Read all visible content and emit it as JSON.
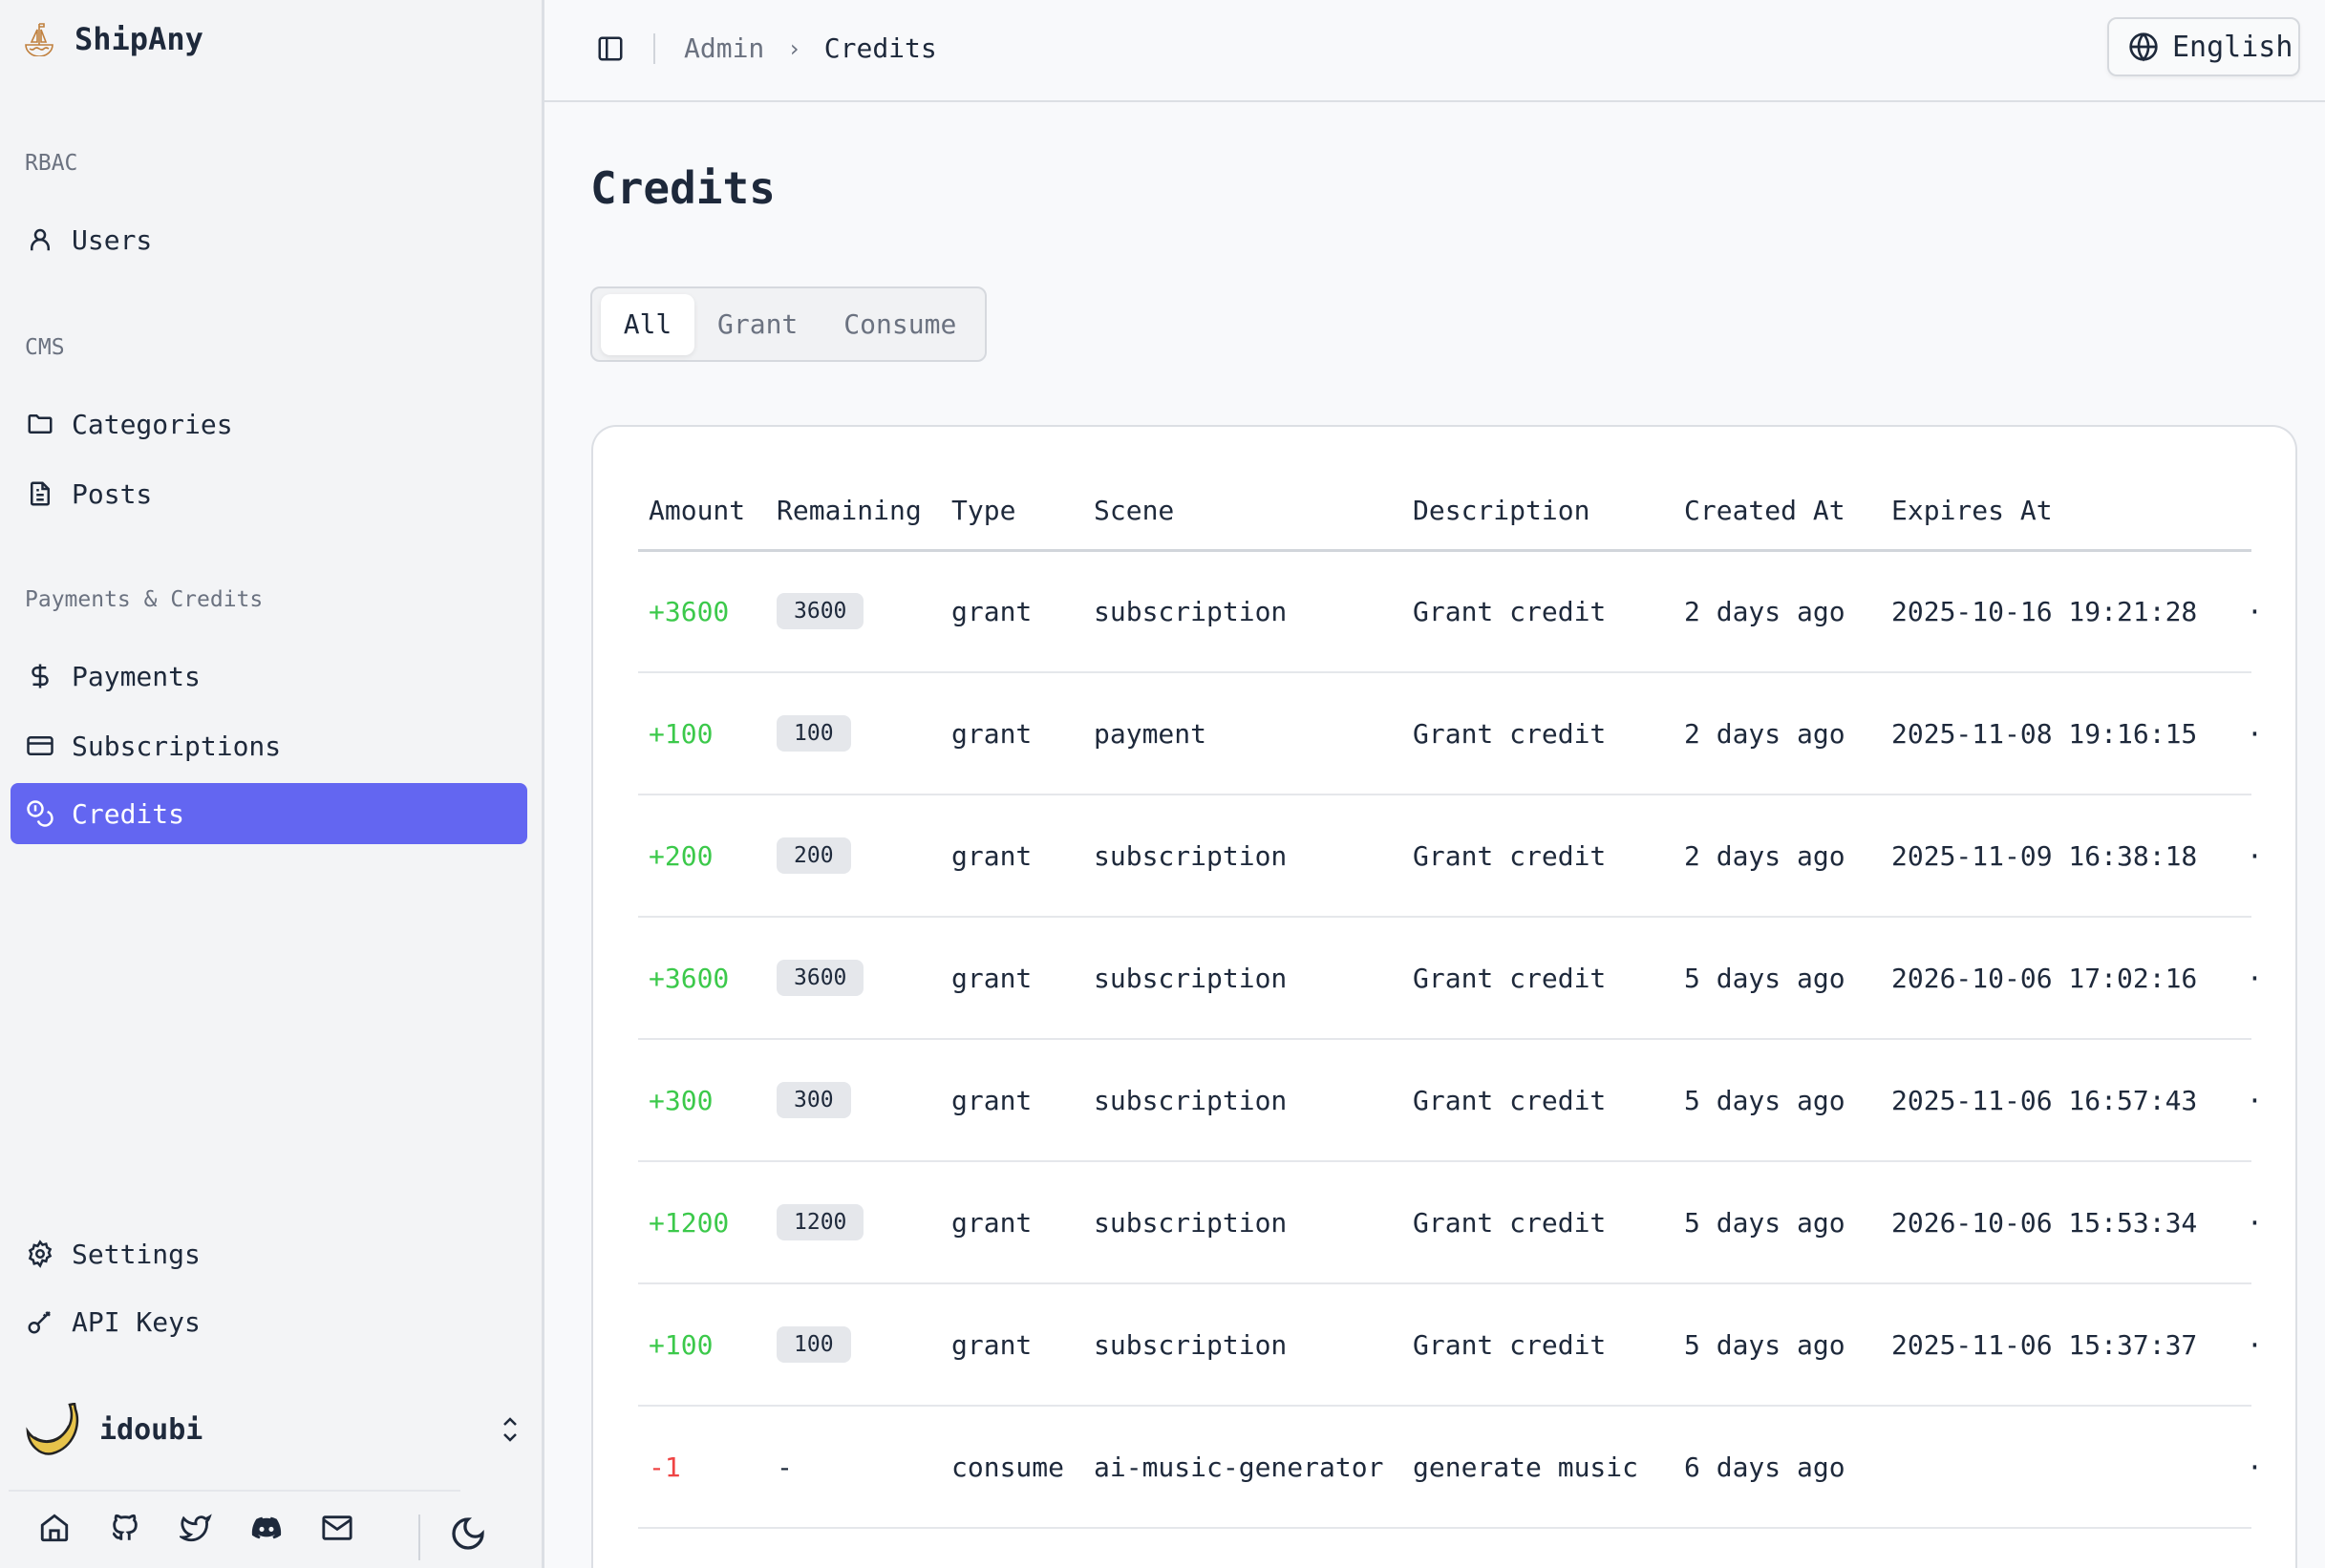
{
  "sidebar": {
    "brand": "ShipAny",
    "sections": [
      {
        "label": "RBAC",
        "items": [
          {
            "label": "Users",
            "icon": "user-icon"
          }
        ]
      },
      {
        "label": "CMS",
        "items": [
          {
            "label": "Categories",
            "icon": "folder-icon"
          },
          {
            "label": "Posts",
            "icon": "file-text-icon"
          }
        ]
      },
      {
        "label": "Payments & Credits",
        "items": [
          {
            "label": "Payments",
            "icon": "dollar-icon"
          },
          {
            "label": "Subscriptions",
            "icon": "credit-card-icon"
          },
          {
            "label": "Credits",
            "icon": "coins-icon",
            "active": true
          }
        ]
      }
    ],
    "bottom_items": [
      {
        "label": "Settings",
        "icon": "gear-icon"
      },
      {
        "label": "API Keys",
        "icon": "key-icon"
      }
    ],
    "user": {
      "name": "idoubi"
    },
    "footer_icons": [
      "home-icon",
      "github-icon",
      "twitter-icon",
      "discord-icon",
      "mail-icon",
      "moon-icon"
    ]
  },
  "header": {
    "breadcrumb": [
      "Admin",
      "Credits"
    ],
    "language": "English"
  },
  "page": {
    "title": "Credits",
    "tabs": [
      {
        "label": "All",
        "active": true
      },
      {
        "label": "Grant"
      },
      {
        "label": "Consume"
      }
    ]
  },
  "colors": {
    "accent": "#6366f1",
    "positive": "#3cc94b",
    "negative": "#ef4444"
  },
  "table": {
    "columns": [
      "Amount",
      "Remaining",
      "Type",
      "Scene",
      "Description",
      "Created At",
      "Expires At"
    ],
    "rows": [
      {
        "amount": "+3600",
        "remaining": "3600",
        "type": "grant",
        "scene": "subscription",
        "description": "Grant credit",
        "created": "2 days ago",
        "expires": "2025-10-16 19:21:28"
      },
      {
        "amount": "+100",
        "remaining": "100",
        "type": "grant",
        "scene": "payment",
        "description": "Grant credit",
        "created": "2 days ago",
        "expires": "2025-11-08 19:16:15"
      },
      {
        "amount": "+200",
        "remaining": "200",
        "type": "grant",
        "scene": "subscription",
        "description": "Grant credit",
        "created": "2 days ago",
        "expires": "2025-11-09 16:38:18"
      },
      {
        "amount": "+3600",
        "remaining": "3600",
        "type": "grant",
        "scene": "subscription",
        "description": "Grant credit",
        "created": "5 days ago",
        "expires": "2026-10-06 17:02:16"
      },
      {
        "amount": "+300",
        "remaining": "300",
        "type": "grant",
        "scene": "subscription",
        "description": "Grant credit",
        "created": "5 days ago",
        "expires": "2025-11-06 16:57:43"
      },
      {
        "amount": "+1200",
        "remaining": "1200",
        "type": "grant",
        "scene": "subscription",
        "description": "Grant credit",
        "created": "5 days ago",
        "expires": "2026-10-06 15:53:34"
      },
      {
        "amount": "+100",
        "remaining": "100",
        "type": "grant",
        "scene": "subscription",
        "description": "Grant credit",
        "created": "5 days ago",
        "expires": "2025-11-06 15:37:37"
      },
      {
        "amount": "-1",
        "remaining": "-",
        "type": "consume",
        "scene": "ai-music-generator",
        "description": "generate music",
        "created": "6 days ago",
        "expires": ""
      }
    ],
    "row_action": "·"
  }
}
